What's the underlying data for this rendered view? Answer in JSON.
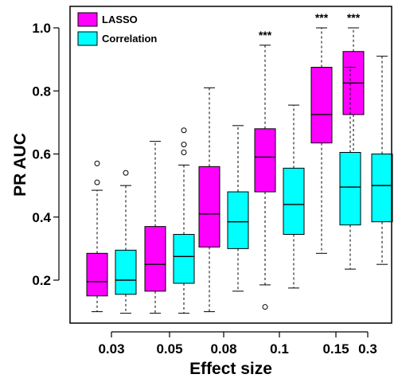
{
  "chart_data": {
    "type": "box",
    "xlabel": "Effect size",
    "ylabel": "PR AUC",
    "categories": [
      "0.03",
      "0.05",
      "0.08",
      "0.1",
      "0.15",
      "0.3"
    ],
    "ylim": [
      0.08,
      1.07
    ],
    "yticks": [
      0.2,
      0.4,
      0.6,
      0.8,
      1.0
    ],
    "ytick_labels": [
      "0.2",
      "0.4",
      "0.6",
      "0.8",
      "1.0"
    ],
    "grid": false,
    "legend_position": "top-left",
    "series": [
      {
        "name": "LASSO",
        "color": "#ff00ff",
        "boxes": [
          {
            "whisker_low": 0.1,
            "q1": 0.15,
            "median": 0.195,
            "q3": 0.285,
            "whisker_high": 0.485,
            "outliers": [
              0.51,
              0.57
            ]
          },
          {
            "whisker_low": 0.095,
            "q1": 0.165,
            "median": 0.25,
            "q3": 0.37,
            "whisker_high": 0.64,
            "outliers": []
          },
          {
            "whisker_low": 0.1,
            "q1": 0.305,
            "median": 0.41,
            "q3": 0.56,
            "whisker_high": 0.81,
            "outliers": []
          },
          {
            "whisker_low": 0.185,
            "q1": 0.48,
            "median": 0.59,
            "q3": 0.68,
            "whisker_high": 0.945,
            "outliers": [
              0.115
            ]
          },
          {
            "whisker_low": 0.285,
            "q1": 0.635,
            "median": 0.725,
            "q3": 0.875,
            "whisker_high": 1.0,
            "outliers": []
          },
          {
            "whisker_low": 0.485,
            "q1": 0.725,
            "median": 0.825,
            "q3": 0.925,
            "whisker_high": 1.0,
            "outliers": []
          }
        ]
      },
      {
        "name": "Correlation",
        "color": "#00ffff",
        "boxes": [
          {
            "whisker_low": 0.095,
            "q1": 0.155,
            "median": 0.2,
            "q3": 0.295,
            "whisker_high": 0.5,
            "outliers": [
              0.54
            ]
          },
          {
            "whisker_low": 0.095,
            "q1": 0.19,
            "median": 0.275,
            "q3": 0.345,
            "whisker_high": 0.565,
            "outliers": [
              0.605,
              0.63,
              0.675
            ]
          },
          {
            "whisker_low": 0.165,
            "q1": 0.3,
            "median": 0.385,
            "q3": 0.48,
            "whisker_high": 0.69,
            "outliers": []
          },
          {
            "whisker_low": 0.175,
            "q1": 0.345,
            "median": 0.44,
            "q3": 0.555,
            "whisker_high": 0.755,
            "outliers": []
          },
          {
            "whisker_low": 0.235,
            "q1": 0.375,
            "median": 0.495,
            "q3": 0.605,
            "whisker_high": 0.875,
            "outliers": []
          },
          {
            "whisker_low": 0.25,
            "q1": 0.385,
            "median": 0.5,
            "q3": 0.6,
            "whisker_high": 0.91,
            "outliers": []
          }
        ]
      }
    ],
    "annotations": [
      {
        "text": "***",
        "category": "0.1"
      },
      {
        "text": "***",
        "category": "0.15"
      },
      {
        "text": "***",
        "category": "0.3"
      }
    ]
  }
}
